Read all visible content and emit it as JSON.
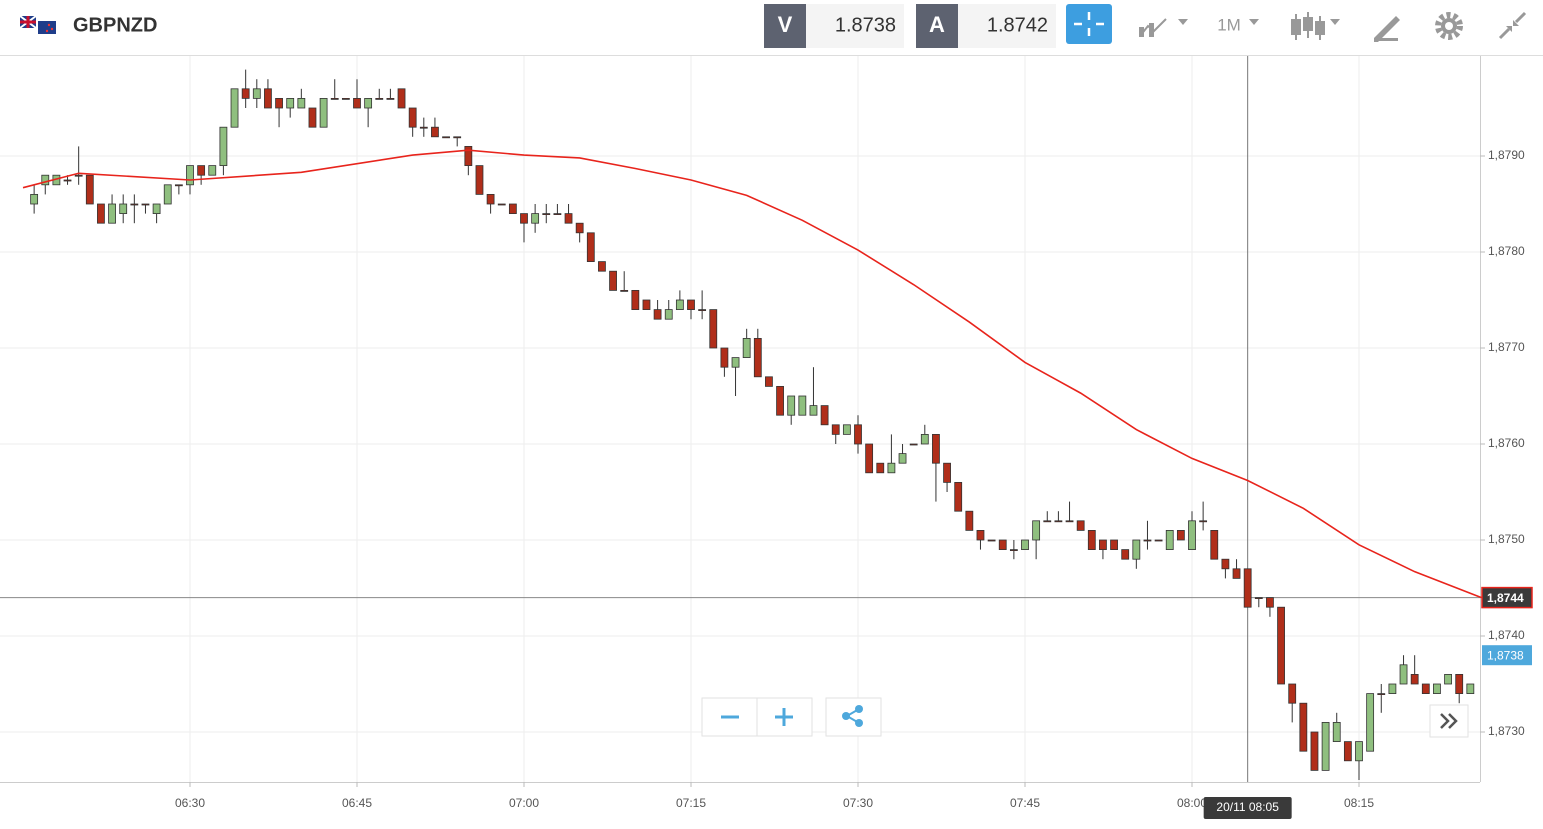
{
  "header": {
    "symbol": "GBPNZD",
    "sell_label": "V",
    "sell_price": "1.8738",
    "buy_label": "A",
    "buy_price": "1.8742",
    "timeframe": "1M"
  },
  "chart_data": {
    "type": "candlestick",
    "up_color": "#8fbf7f",
    "down_color": "#b02e1a",
    "x": [
      "06:16",
      "06:17",
      "06:18",
      "06:19",
      "06:20",
      "06:21",
      "06:22",
      "06:23",
      "06:24",
      "06:25",
      "06:26",
      "06:27",
      "06:28",
      "06:29",
      "06:30",
      "06:31",
      "06:32",
      "06:33",
      "06:34",
      "06:35",
      "06:36",
      "06:37",
      "06:38",
      "06:39",
      "06:40",
      "06:41",
      "06:42",
      "06:43",
      "06:44",
      "06:45",
      "06:46",
      "06:47",
      "06:48",
      "06:49",
      "06:50",
      "06:51",
      "06:52",
      "06:53",
      "06:54",
      "06:55",
      "06:56",
      "06:57",
      "06:58",
      "06:59",
      "07:00",
      "07:01",
      "07:02",
      "07:03",
      "07:04",
      "07:05",
      "07:06",
      "07:07",
      "07:08",
      "07:09",
      "07:10",
      "07:11",
      "07:12",
      "07:13",
      "07:14",
      "07:15",
      "07:16",
      "07:17",
      "07:18",
      "07:19",
      "07:20",
      "07:21",
      "07:22",
      "07:23",
      "07:24",
      "07:25",
      "07:26",
      "07:27",
      "07:28",
      "07:29",
      "07:30",
      "07:31",
      "07:32",
      "07:33",
      "07:34",
      "07:35",
      "07:36",
      "07:37",
      "07:38",
      "07:39",
      "07:40",
      "07:41",
      "07:42",
      "07:43",
      "07:44",
      "07:45",
      "07:46",
      "07:47",
      "07:48",
      "07:49",
      "07:50",
      "07:51",
      "07:52",
      "07:53",
      "07:54",
      "07:55",
      "07:56",
      "07:57",
      "07:58",
      "07:59",
      "08:00",
      "08:01",
      "08:02",
      "08:03",
      "08:04",
      "08:05",
      "08:06",
      "08:07",
      "08:08",
      "08:09",
      "08:10",
      "08:11",
      "08:12",
      "08:13",
      "08:14",
      "08:15",
      "08:16",
      "08:17",
      "08:18",
      "08:19",
      "08:20",
      "08:21",
      "08:22",
      "08:23",
      "08:24",
      "08:25"
    ],
    "open": [
      1.8785,
      1.8787,
      1.8787,
      1.87875,
      1.8788,
      1.8788,
      1.8785,
      1.8783,
      1.8784,
      1.8785,
      1.8785,
      1.8784,
      1.8785,
      1.8787,
      1.8787,
      1.8789,
      1.8788,
      1.8789,
      1.8793,
      1.8797,
      1.8796,
      1.8797,
      1.8796,
      1.8795,
      1.8795,
      1.8795,
      1.8793,
      1.8796,
      1.8796,
      1.8796,
      1.8795,
      1.8796,
      1.8796,
      1.8797,
      1.8795,
      1.8793,
      1.8793,
      1.8792,
      1.8792,
      1.8791,
      1.8789,
      1.8786,
      1.8785,
      1.8785,
      1.8784,
      1.8783,
      1.8784,
      1.8784,
      1.8784,
      1.8783,
      1.8782,
      1.8779,
      1.8778,
      1.8776,
      1.8776,
      1.8775,
      1.8774,
      1.8773,
      1.8774,
      1.8775,
      1.8774,
      1.8774,
      1.877,
      1.8768,
      1.8769,
      1.8771,
      1.8767,
      1.8766,
      1.8763,
      1.8763,
      1.8763,
      1.8764,
      1.8762,
      1.8761,
      1.8762,
      1.876,
      1.8758,
      1.8757,
      1.8758,
      1.876,
      1.876,
      1.8761,
      1.8758,
      1.8756,
      1.8753,
      1.8751,
      1.875,
      1.875,
      1.8749,
      1.8749,
      1.875,
      1.8752,
      1.8752,
      1.8752,
      1.8752,
      1.8751,
      1.875,
      1.875,
      1.8749,
      1.8748,
      1.875,
      1.875,
      1.8749,
      1.8751,
      1.8749,
      1.8752,
      1.8751,
      1.8748,
      1.8747,
      1.8747,
      1.8744,
      1.8744,
      1.8743,
      1.8735,
      1.8733,
      1.873,
      1.8726,
      1.8729,
      1.8729,
      1.8727,
      1.8728,
      1.8734,
      1.8734,
      1.8735,
      1.8736,
      1.8735,
      1.8734,
      1.8735,
      1.8736,
      1.8734
    ],
    "high": [
      1.8787,
      1.8788,
      1.8788,
      1.8788,
      1.8791,
      1.8788,
      1.8785,
      1.8786,
      1.8786,
      1.8786,
      1.8785,
      1.8785,
      1.8787,
      1.8787,
      1.8789,
      1.8789,
      1.8789,
      1.8793,
      1.8797,
      1.8799,
      1.8798,
      1.8798,
      1.8796,
      1.8796,
      1.8797,
      1.8795,
      1.8796,
      1.8798,
      1.8796,
      1.8798,
      1.8796,
      1.8797,
      1.8797,
      1.8797,
      1.8795,
      1.8794,
      1.8794,
      1.8792,
      1.8792,
      1.8791,
      1.8789,
      1.8786,
      1.8785,
      1.8785,
      1.8784,
      1.8785,
      1.8785,
      1.8785,
      1.8785,
      1.8783,
      1.8782,
      1.8779,
      1.8778,
      1.8778,
      1.8776,
      1.8775,
      1.8775,
      1.8775,
      1.8776,
      1.8775,
      1.8776,
      1.8774,
      1.877,
      1.8769,
      1.8772,
      1.8772,
      1.8767,
      1.8766,
      1.8765,
      1.8765,
      1.8768,
      1.8764,
      1.8762,
      1.8762,
      1.8763,
      1.876,
      1.8758,
      1.8761,
      1.876,
      1.876,
      1.8762,
      1.8761,
      1.8758,
      1.8756,
      1.8753,
      1.8751,
      1.875,
      1.875,
      1.875,
      1.875,
      1.8752,
      1.8753,
      1.8753,
      1.8754,
      1.8752,
      1.8751,
      1.875,
      1.875,
      1.8749,
      1.875,
      1.8752,
      1.875,
      1.8751,
      1.8751,
      1.8753,
      1.8754,
      1.8751,
      1.8748,
      1.8748,
      1.8747,
      1.8744,
      1.8744,
      1.8743,
      1.8735,
      1.8733,
      1.873,
      1.8731,
      1.8732,
      1.8729,
      1.8729,
      1.8734,
      1.8735,
      1.8735,
      1.8738,
      1.8738,
      1.8735,
      1.8735,
      1.8736,
      1.8736,
      1.8735
    ],
    "low": [
      1.8784,
      1.8786,
      1.8787,
      1.8787,
      1.8787,
      1.8785,
      1.8783,
      1.8783,
      1.8783,
      1.8783,
      1.8784,
      1.8783,
      1.8785,
      1.8786,
      1.8786,
      1.8787,
      1.8788,
      1.8788,
      1.8793,
      1.8795,
      1.8795,
      1.8795,
      1.8793,
      1.8794,
      1.8795,
      1.8793,
      1.8793,
      1.8796,
      1.8796,
      1.8795,
      1.8793,
      1.8796,
      1.8796,
      1.8795,
      1.8792,
      1.8792,
      1.8792,
      1.8792,
      1.8791,
      1.8788,
      1.8786,
      1.8784,
      1.8785,
      1.8784,
      1.8781,
      1.8782,
      1.8783,
      1.8784,
      1.8783,
      1.8781,
      1.8779,
      1.8778,
      1.8776,
      1.8776,
      1.8774,
      1.8774,
      1.8773,
      1.8773,
      1.8774,
      1.8773,
      1.8773,
      1.877,
      1.8767,
      1.8765,
      1.8769,
      1.8767,
      1.8766,
      1.8763,
      1.8762,
      1.8763,
      1.8763,
      1.8762,
      1.876,
      1.8761,
      1.8759,
      1.8757,
      1.8757,
      1.8757,
      1.8758,
      1.876,
      1.876,
      1.8754,
      1.8755,
      1.8753,
      1.8751,
      1.8749,
      1.875,
      1.8749,
      1.8748,
      1.8749,
      1.8748,
      1.8752,
      1.8752,
      1.8752,
      1.8751,
      1.8749,
      1.8748,
      1.8749,
      1.8748,
      1.8747,
      1.8749,
      1.875,
      1.8749,
      1.875,
      1.8749,
      1.8751,
      1.8748,
      1.8746,
      1.8746,
      1.8743,
      1.8743,
      1.8742,
      1.8735,
      1.8731,
      1.8728,
      1.8726,
      1.8726,
      1.8729,
      1.8727,
      1.8725,
      1.8728,
      1.8732,
      1.8734,
      1.8735,
      1.8735,
      1.8734,
      1.8734,
      1.8735,
      1.8733,
      1.8734
    ],
    "close": [
      1.8786,
      1.8788,
      1.8788,
      1.87875,
      1.8788,
      1.8785,
      1.8783,
      1.8785,
      1.8785,
      1.8785,
      1.8785,
      1.8785,
      1.8787,
      1.8787,
      1.8789,
      1.8788,
      1.8789,
      1.8793,
      1.8797,
      1.8796,
      1.8797,
      1.8795,
      1.8795,
      1.8796,
      1.8796,
      1.8793,
      1.8796,
      1.8796,
      1.8796,
      1.8795,
      1.8796,
      1.8796,
      1.8796,
      1.8795,
      1.8793,
      1.8793,
      1.8792,
      1.8792,
      1.8792,
      1.8789,
      1.8786,
      1.8785,
      1.8785,
      1.8784,
      1.8783,
      1.8784,
      1.8784,
      1.8784,
      1.8783,
      1.8782,
      1.8779,
      1.8778,
      1.8776,
      1.8776,
      1.8774,
      1.8774,
      1.8773,
      1.8774,
      1.8775,
      1.8774,
      1.8774,
      1.877,
      1.8768,
      1.8769,
      1.8771,
      1.8767,
      1.8766,
      1.8763,
      1.8765,
      1.8765,
      1.8764,
      1.8762,
      1.8761,
      1.8762,
      1.876,
      1.8757,
      1.8757,
      1.8758,
      1.8759,
      1.876,
      1.8761,
      1.8758,
      1.8756,
      1.8753,
      1.8751,
      1.875,
      1.875,
      1.8749,
      1.8749,
      1.875,
      1.8752,
      1.8752,
      1.8752,
      1.8752,
      1.8751,
      1.8749,
      1.8749,
      1.8749,
      1.8748,
      1.875,
      1.875,
      1.875,
      1.8751,
      1.875,
      1.8752,
      1.8752,
      1.8748,
      1.8747,
      1.8746,
      1.8743,
      1.8744,
      1.8743,
      1.8735,
      1.8733,
      1.8728,
      1.8726,
      1.8731,
      1.8731,
      1.8727,
      1.8729,
      1.8734,
      1.8734,
      1.8735,
      1.8737,
      1.8735,
      1.8734,
      1.8735,
      1.8736,
      1.8734,
      1.8735
    ],
    "overlay": {
      "color": "#e8241c",
      "x": [
        "06:15",
        "06:20",
        "06:30",
        "06:40",
        "06:50",
        "06:55",
        "07:00",
        "07:05",
        "07:10",
        "07:15",
        "07:20",
        "07:25",
        "07:30",
        "07:35",
        "07:40",
        "07:45",
        "07:50",
        "07:55",
        "08:00",
        "08:05",
        "08:10",
        "08:15",
        "08:20",
        "08:26"
      ],
      "values": [
        1.87867,
        1.87882,
        1.87875,
        1.87883,
        1.87901,
        1.87906,
        1.87901,
        1.87898,
        1.87887,
        1.87875,
        1.87859,
        1.87833,
        1.87802,
        1.87766,
        1.87727,
        1.87685,
        1.87653,
        1.87615,
        1.87585,
        1.87562,
        1.87533,
        1.87495,
        1.87467,
        1.8744
      ]
    },
    "ylim": [
      1.8725,
      1.88
    ],
    "yticks": [
      {
        "value": 1.873,
        "label": "1,8730"
      },
      {
        "value": 1.874,
        "label": "1,8740"
      },
      {
        "value": 1.875,
        "label": "1,8750"
      },
      {
        "value": 1.876,
        "label": "1,8760"
      },
      {
        "value": 1.877,
        "label": "1,8770"
      },
      {
        "value": 1.878,
        "label": "1,8780"
      },
      {
        "value": 1.879,
        "label": "1,8790"
      }
    ],
    "xticks": [
      "06:30",
      "06:45",
      "07:00",
      "07:15",
      "07:30",
      "07:45",
      "08:00",
      "08:15"
    ],
    "grid": true,
    "crosshair": {
      "x": "08:05",
      "x_label": "20/11 08:05",
      "y": 1.8744,
      "y_label": "1,8744"
    },
    "last_price": {
      "value": 1.8738,
      "label": "1,8738",
      "color": "#4ea8dc"
    }
  }
}
